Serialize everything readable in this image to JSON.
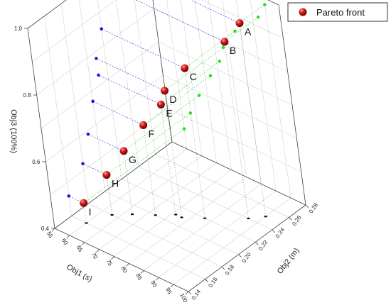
{
  "colors": {
    "pareto": "#c81414",
    "proj_obj1_obj3": "#1b1bd6",
    "proj_obj2_obj3": "#27e027",
    "proj_floor": "#000000",
    "grid": "#d2d2d2",
    "frame": "#444444"
  },
  "chart_data": {
    "type": "scatter",
    "subtype": "3d-scatter-with-projections",
    "xlabel": "Obj1 (s)",
    "ylabel": "Obj2 (m)",
    "zlabel": "Obj3 (100%)",
    "xlim": [
      55,
      100
    ],
    "ylim": [
      0.14,
      0.28
    ],
    "zlim": [
      0.4,
      1.0
    ],
    "x_ticks": [
      "55",
      "60",
      "65",
      "70",
      "75",
      "80",
      "85",
      "90",
      "95",
      "100"
    ],
    "y_ticks": [
      "0.14",
      "0.16",
      "0.18",
      "0.20",
      "0.22",
      "0.24",
      "0.26",
      "0.28"
    ],
    "z_ticks": [
      "0.4",
      "0.6",
      "0.8",
      "1.0"
    ],
    "grid": true,
    "legend": {
      "position": "top-right",
      "entries": [
        "Pareto front"
      ]
    },
    "series": [
      {
        "name": "Pareto front",
        "labels": [
          "A",
          "B",
          "C",
          "D",
          "E",
          "F",
          "G",
          "H",
          "I"
        ],
        "x": [
          95,
          92,
          83,
          78,
          76,
          72,
          67,
          63,
          60
        ],
        "y": [
          0.25,
          0.24,
          0.22,
          0.21,
          0.21,
          0.2,
          0.19,
          0.18,
          0.16
        ],
        "z": [
          0.98,
          0.93,
          0.85,
          0.78,
          0.73,
          0.67,
          0.59,
          0.52,
          0.46
        ]
      }
    ]
  }
}
